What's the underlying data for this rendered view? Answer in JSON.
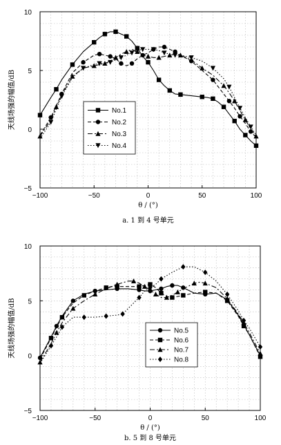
{
  "chart_data": [
    {
      "type": "line",
      "caption": "a. 1 到 4 号单元",
      "xlabel": "θ / (°)",
      "ylabel": "天线场强的幅值/dB",
      "xlim": [
        -100,
        100
      ],
      "ylim": [
        -5,
        10
      ],
      "xticks": [
        -100,
        -50,
        0,
        50,
        100
      ],
      "yticks": [
        -5,
        0,
        5,
        10
      ],
      "grid": true,
      "legend_position": "lower-left",
      "series": [
        {
          "name": "No.1",
          "style": "solid",
          "marker": "square",
          "x": [
            -100,
            -90,
            -85,
            -80,
            -70,
            -60,
            -50,
            -45,
            -40,
            -35,
            -30,
            -25,
            -20,
            -15,
            -10,
            -5,
            0,
            5,
            10,
            15,
            20,
            25,
            30,
            40,
            50,
            55,
            60,
            65,
            70,
            75,
            80,
            85,
            90,
            95,
            100
          ],
          "y": [
            1.2,
            2.7,
            3.4,
            4.2,
            5.5,
            6.6,
            7.4,
            7.8,
            8.1,
            8.3,
            8.3,
            8.1,
            7.9,
            7.5,
            6.9,
            6.2,
            5.7,
            5.0,
            4.2,
            3.7,
            3.3,
            3.0,
            2.95,
            2.85,
            2.75,
            2.7,
            2.6,
            2.3,
            1.9,
            1.3,
            0.7,
            0.0,
            -0.5,
            -1.0,
            -1.4
          ]
        },
        {
          "name": "No.2",
          "style": "dashed",
          "marker": "circle",
          "x": [
            -100,
            -90,
            -85,
            -80,
            -70,
            -60,
            -50,
            -45,
            -40,
            -35,
            -30,
            -25,
            -20,
            -15,
            -10,
            -5,
            0,
            5,
            10,
            15,
            20,
            25,
            30,
            40,
            50,
            60,
            70,
            75,
            80,
            85,
            90,
            95,
            100
          ],
          "y": [
            -0.5,
            1.0,
            2.0,
            3.0,
            4.8,
            5.7,
            6.3,
            6.4,
            6.3,
            6.2,
            6.0,
            5.6,
            5.4,
            5.6,
            6.0,
            6.3,
            6.5,
            6.8,
            7.0,
            7.0,
            6.8,
            6.6,
            6.3,
            5.8,
            5.0,
            4.2,
            3.0,
            2.4,
            1.8,
            1.1,
            0.5,
            -0.2,
            -0.7
          ]
        },
        {
          "name": "No.3",
          "style": "dashdot",
          "marker": "triangle",
          "x": [
            -100,
            -90,
            -85,
            -80,
            -70,
            -60,
            -50,
            -45,
            -40,
            -35,
            -30,
            -25,
            -20,
            -15,
            -10,
            -5,
            0,
            5,
            10,
            15,
            20,
            25,
            30,
            40,
            50,
            60,
            70,
            75,
            80,
            85,
            90,
            95,
            100
          ],
          "y": [
            -0.6,
            0.8,
            1.9,
            2.9,
            4.5,
            5.2,
            5.4,
            5.5,
            5.6,
            5.8,
            6.1,
            6.4,
            6.6,
            6.8,
            6.6,
            6.3,
            6.2,
            6.1,
            6.1,
            6.2,
            6.3,
            6.4,
            6.3,
            5.9,
            5.2,
            4.6,
            3.7,
            3.1,
            2.4,
            1.6,
            0.8,
            0.0,
            -0.6
          ]
        },
        {
          "name": "No.4",
          "style": "dotted",
          "marker": "triangle-down",
          "x": [
            -100,
            -90,
            -85,
            -80,
            -70,
            -60,
            -50,
            -45,
            -40,
            -35,
            -30,
            -25,
            -20,
            -15,
            -10,
            -5,
            0,
            5,
            10,
            15,
            20,
            25,
            30,
            40,
            50,
            60,
            70,
            75,
            80,
            85,
            90,
            95,
            100
          ],
          "y": [
            -0.8,
            0.6,
            1.7,
            2.8,
            4.4,
            5.2,
            5.5,
            5.6,
            5.6,
            5.7,
            5.9,
            6.1,
            6.3,
            6.5,
            6.7,
            6.8,
            6.8,
            6.8,
            6.7,
            6.5,
            6.4,
            6.3,
            6.3,
            6.1,
            5.8,
            5.2,
            4.3,
            3.6,
            2.7,
            1.8,
            1.0,
            0.2,
            -0.5
          ]
        }
      ]
    },
    {
      "type": "line",
      "caption": "b. 5 到 8 号单元",
      "xlabel": "θ / (°)",
      "ylabel": "天线场强的幅值/dB",
      "xlim": [
        -100,
        100
      ],
      "ylim": [
        -5,
        10
      ],
      "xticks": [
        -100,
        -50,
        0,
        50,
        100
      ],
      "yticks": [
        -5,
        0,
        5,
        10
      ],
      "grid": true,
      "legend_position": "lower-right",
      "series": [
        {
          "name": "No.5",
          "style": "solid",
          "marker": "circle",
          "x": [
            -100,
            -90,
            -85,
            -80,
            -70,
            -60,
            -50,
            -40,
            -30,
            -20,
            -10,
            -5,
            0,
            5,
            10,
            15,
            20,
            25,
            30,
            40,
            50,
            60,
            70,
            80,
            85,
            90,
            100
          ],
          "y": [
            -0.2,
            1.7,
            2.7,
            3.6,
            5.0,
            5.6,
            5.9,
            6.0,
            6.1,
            6.1,
            6.0,
            5.9,
            5.9,
            6.0,
            6.1,
            6.3,
            6.4,
            6.4,
            6.2,
            5.7,
            5.6,
            5.7,
            5.1,
            3.7,
            2.8,
            1.9,
            0.0
          ]
        },
        {
          "name": "No.6",
          "style": "dashed",
          "marker": "square",
          "x": [
            -100,
            -90,
            -85,
            -80,
            -70,
            -60,
            -50,
            -40,
            -35,
            -30,
            -20,
            -10,
            -5,
            0,
            5,
            10,
            15,
            20,
            25,
            30,
            40,
            50,
            60,
            70,
            80,
            85,
            90,
            100
          ],
          "y": [
            -0.3,
            1.6,
            2.6,
            3.5,
            4.8,
            5.5,
            5.9,
            6.2,
            6.3,
            6.3,
            6.3,
            6.3,
            6.4,
            6.5,
            6.2,
            5.7,
            5.4,
            5.3,
            5.4,
            5.5,
            5.7,
            5.8,
            5.7,
            5.0,
            3.6,
            2.7,
            1.9,
            -0.1
          ]
        },
        {
          "name": "No.7",
          "style": "dashdot",
          "marker": "triangle",
          "x": [
            -100,
            -90,
            -85,
            -80,
            -70,
            -60,
            -50,
            -40,
            -30,
            -20,
            -15,
            -10,
            -5,
            0,
            5,
            10,
            15,
            20,
            25,
            30,
            40,
            45,
            50,
            60,
            70,
            80,
            85,
            90,
            100
          ],
          "y": [
            -0.6,
            1.1,
            2.1,
            3.0,
            4.3,
            5.0,
            5.6,
            6.1,
            6.5,
            6.8,
            6.8,
            6.6,
            6.3,
            6.0,
            5.6,
            5.3,
            5.3,
            5.5,
            5.8,
            6.1,
            6.6,
            6.7,
            6.6,
            6.2,
            5.2,
            3.8,
            3.0,
            2.1,
            0.2
          ]
        },
        {
          "name": "No.8",
          "style": "dotted",
          "marker": "diamond",
          "x": [
            -100,
            -90,
            -85,
            -80,
            -70,
            -60,
            -50,
            -40,
            -30,
            -25,
            -20,
            -10,
            -5,
            0,
            5,
            10,
            20,
            30,
            40,
            50,
            60,
            70,
            80,
            85,
            90,
            100
          ],
          "y": [
            -0.7,
            0.9,
            1.7,
            2.6,
            3.5,
            3.5,
            3.5,
            3.6,
            3.7,
            3.8,
            4.3,
            5.3,
            5.9,
            6.2,
            6.5,
            7.0,
            7.6,
            8.1,
            8.1,
            7.6,
            6.8,
            5.6,
            4.1,
            3.2,
            2.5,
            0.8
          ]
        }
      ]
    }
  ]
}
